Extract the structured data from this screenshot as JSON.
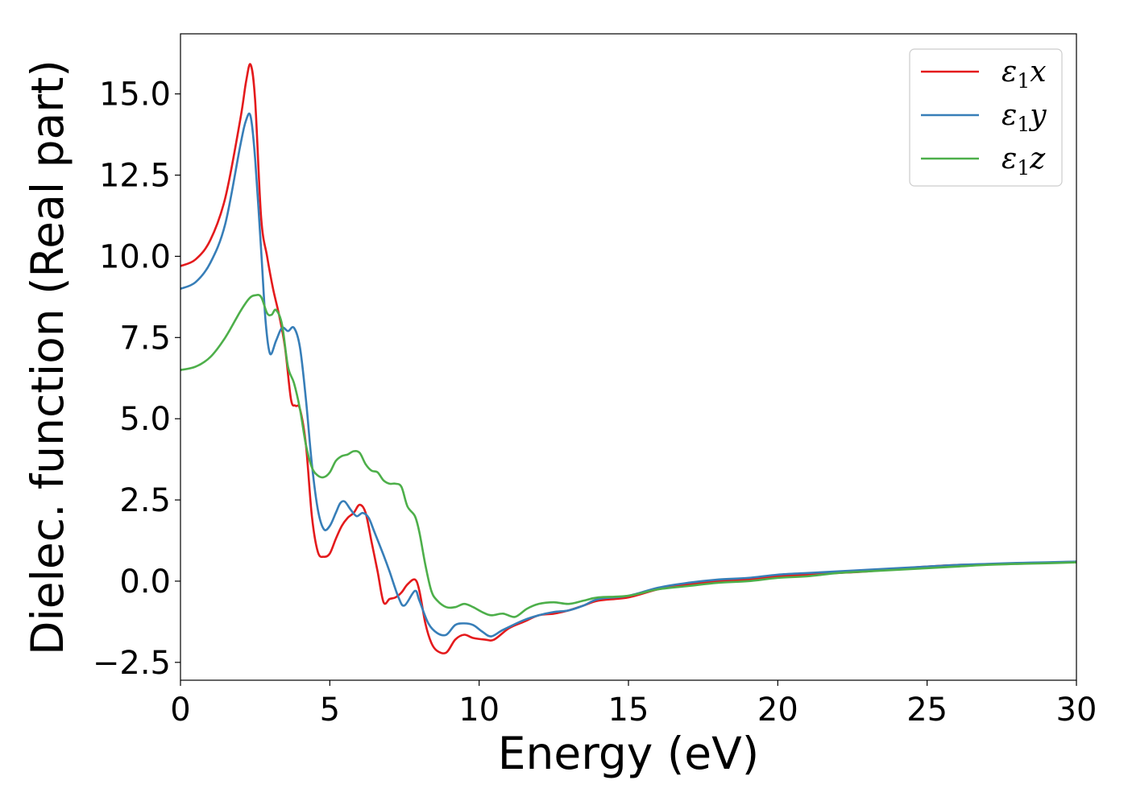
{
  "chart_data": {
    "type": "line",
    "xlabel": "Energy (eV)",
    "ylabel": "Dielec. function (Real part)",
    "xlim": [
      0,
      30
    ],
    "ylim": [
      -3.05,
      16.85
    ],
    "xticks": [
      0,
      5,
      10,
      15,
      20,
      25,
      30
    ],
    "xtick_labels": [
      "0",
      "5",
      "10",
      "15",
      "20",
      "25",
      "30"
    ],
    "yticks": [
      -2.5,
      0.0,
      2.5,
      5.0,
      7.5,
      10.0,
      12.5,
      15.0
    ],
    "ytick_labels": [
      "−2.5",
      "0.0",
      "2.5",
      "5.0",
      "7.5",
      "10.0",
      "12.5",
      "15.0"
    ],
    "grid": false,
    "legend_position": "top-right",
    "series": [
      {
        "name": "ε₁x",
        "legend_base": "ε",
        "legend_sub": "1",
        "legend_suffix": "x",
        "color": "#e41a1c",
        "x": [
          0,
          0.5,
          1.0,
          1.5,
          2.0,
          2.2,
          2.35,
          2.5,
          2.7,
          2.9,
          3.1,
          3.3,
          3.5,
          3.7,
          3.85,
          4.0,
          4.2,
          4.4,
          4.6,
          4.8,
          5.0,
          5.2,
          5.4,
          5.6,
          5.8,
          6.0,
          6.2,
          6.4,
          6.6,
          6.8,
          7.0,
          7.2,
          7.4,
          7.6,
          7.85,
          8.0,
          8.2,
          8.4,
          8.6,
          8.9,
          9.2,
          9.5,
          9.8,
          10.2,
          10.5,
          11.0,
          11.5,
          12.0,
          12.5,
          13.0,
          13.5,
          14.0,
          15.0,
          16.0,
          17.0,
          18.0,
          19.0,
          20.0,
          21.0,
          22.0,
          23.0,
          24.0,
          25.0,
          26.0,
          27.0,
          28.0,
          29.0,
          30.0
        ],
        "y": [
          9.7,
          9.9,
          10.5,
          11.8,
          14.2,
          15.4,
          15.9,
          14.8,
          11.2,
          10.0,
          9.0,
          8.2,
          7.2,
          5.6,
          5.4,
          5.3,
          4.2,
          2.0,
          0.9,
          0.75,
          0.85,
          1.3,
          1.7,
          1.95,
          2.1,
          2.35,
          2.1,
          1.2,
          0.3,
          -0.65,
          -0.55,
          -0.5,
          -0.35,
          -0.1,
          0.05,
          -0.3,
          -1.3,
          -1.9,
          -2.15,
          -2.2,
          -1.8,
          -1.65,
          -1.75,
          -1.8,
          -1.8,
          -1.45,
          -1.25,
          -1.05,
          -1.0,
          -0.9,
          -0.75,
          -0.6,
          -0.5,
          -0.25,
          -0.1,
          0.0,
          0.05,
          0.15,
          0.2,
          0.25,
          0.3,
          0.38,
          0.45,
          0.5,
          0.52,
          0.55,
          0.57,
          0.6
        ]
      },
      {
        "name": "ε₁y",
        "legend_base": "ε",
        "legend_sub": "1",
        "legend_suffix": "y",
        "color": "#377eb8",
        "x": [
          0,
          0.5,
          1.0,
          1.5,
          2.0,
          2.2,
          2.35,
          2.5,
          2.7,
          2.85,
          3.0,
          3.2,
          3.4,
          3.6,
          3.8,
          4.0,
          4.2,
          4.4,
          4.6,
          4.8,
          5.0,
          5.2,
          5.35,
          5.5,
          5.7,
          5.9,
          6.1,
          6.3,
          6.5,
          6.8,
          7.0,
          7.3,
          7.5,
          7.85,
          8.0,
          8.3,
          8.6,
          8.9,
          9.2,
          9.5,
          9.8,
          10.1,
          10.4,
          10.8,
          11.5,
          12.0,
          12.5,
          13.0,
          13.5,
          14.0,
          15.0,
          16.0,
          17.0,
          18.0,
          19.0,
          20.0,
          21.0,
          22.0,
          23.0,
          24.0,
          25.0,
          26.0,
          27.0,
          28.0,
          29.0,
          30.0
        ],
        "y": [
          9.0,
          9.2,
          9.8,
          11.0,
          13.4,
          14.2,
          14.3,
          13.0,
          10.2,
          8.0,
          7.0,
          7.4,
          7.8,
          7.7,
          7.8,
          7.2,
          5.6,
          3.6,
          2.2,
          1.6,
          1.7,
          2.1,
          2.4,
          2.45,
          2.2,
          2.0,
          2.1,
          1.95,
          1.5,
          0.8,
          0.3,
          -0.5,
          -0.75,
          -0.3,
          -0.6,
          -1.3,
          -1.6,
          -1.65,
          -1.35,
          -1.3,
          -1.35,
          -1.55,
          -1.7,
          -1.5,
          -1.2,
          -1.05,
          -0.95,
          -0.9,
          -0.75,
          -0.55,
          -0.45,
          -0.2,
          -0.05,
          0.05,
          0.1,
          0.2,
          0.25,
          0.3,
          0.35,
          0.4,
          0.45,
          0.5,
          0.53,
          0.56,
          0.58,
          0.6
        ]
      },
      {
        "name": "ε₁z",
        "legend_base": "ε",
        "legend_sub": "1",
        "legend_suffix": "z",
        "color": "#4daf4a",
        "x": [
          0,
          0.5,
          1.0,
          1.5,
          2.0,
          2.3,
          2.5,
          2.7,
          2.9,
          3.05,
          3.2,
          3.4,
          3.6,
          3.8,
          4.0,
          4.2,
          4.4,
          4.6,
          4.8,
          5.0,
          5.2,
          5.4,
          5.6,
          5.8,
          6.0,
          6.2,
          6.4,
          6.6,
          6.8,
          7.0,
          7.2,
          7.4,
          7.6,
          7.85,
          8.0,
          8.2,
          8.4,
          8.6,
          8.9,
          9.2,
          9.5,
          9.8,
          10.1,
          10.4,
          10.8,
          11.2,
          11.6,
          12.0,
          12.5,
          13.0,
          13.5,
          14.0,
          15.0,
          16.0,
          17.0,
          18.0,
          19.0,
          20.0,
          21.0,
          22.0,
          23.0,
          24.0,
          25.0,
          26.0,
          27.0,
          28.0,
          29.0,
          30.0
        ],
        "y": [
          6.5,
          6.6,
          6.9,
          7.5,
          8.3,
          8.7,
          8.8,
          8.75,
          8.25,
          8.2,
          8.35,
          7.9,
          6.6,
          6.1,
          5.3,
          4.2,
          3.5,
          3.25,
          3.2,
          3.35,
          3.7,
          3.85,
          3.9,
          4.0,
          3.95,
          3.6,
          3.4,
          3.35,
          3.1,
          3.0,
          3.0,
          2.9,
          2.3,
          2.0,
          1.5,
          0.5,
          -0.3,
          -0.6,
          -0.8,
          -0.8,
          -0.7,
          -0.8,
          -0.95,
          -1.05,
          -1.0,
          -1.1,
          -0.85,
          -0.7,
          -0.65,
          -0.7,
          -0.6,
          -0.5,
          -0.45,
          -0.25,
          -0.15,
          -0.05,
          0.0,
          0.1,
          0.15,
          0.25,
          0.3,
          0.35,
          0.4,
          0.45,
          0.5,
          0.53,
          0.55,
          0.58
        ]
      }
    ]
  }
}
